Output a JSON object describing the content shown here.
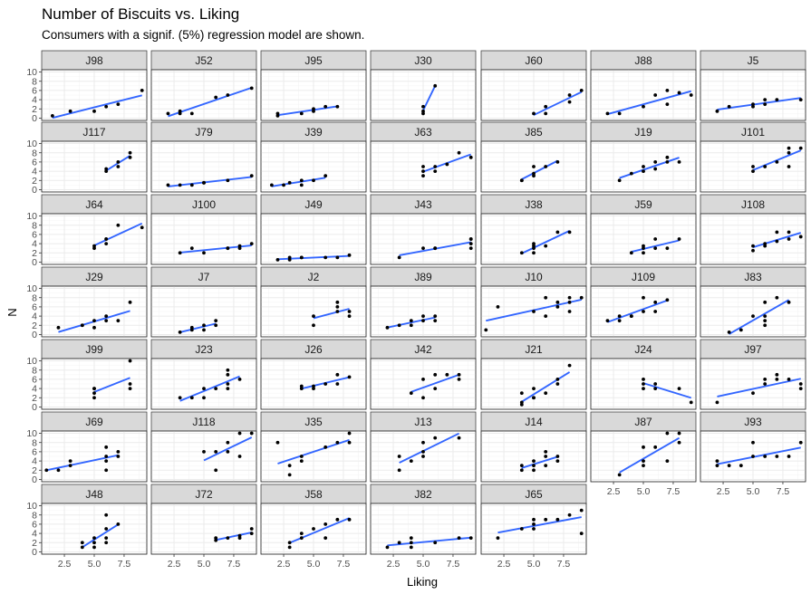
{
  "chart_data": {
    "type": "scatter",
    "title": "Number of Biscuits vs. Liking",
    "subtitle": "Consumers with a signif. (5%) regression model are shown.",
    "xlabel": "Liking",
    "ylabel": "N",
    "xlim": [
      0.6,
      9.4
    ],
    "ylim": [
      -0.5,
      10.5
    ],
    "xticks": [
      2.5,
      5.0,
      7.5
    ],
    "xtick_labels": [
      "2.5",
      "5.0",
      "7.5"
    ],
    "yticks": [
      0,
      2,
      4,
      6,
      8,
      10
    ],
    "ytick_labels": [
      "0",
      "2",
      "4",
      "6",
      "8",
      "10"
    ],
    "grid": true,
    "panels": [
      {
        "id": "J98",
        "x": [
          1.5,
          3,
          5,
          6,
          7,
          9
        ],
        "y": [
          0.5,
          1.5,
          1.5,
          2.5,
          3,
          6
        ]
      },
      {
        "id": "J52",
        "x": [
          2,
          3,
          3,
          4,
          6,
          7,
          9
        ],
        "y": [
          1,
          1,
          1.5,
          1,
          4.5,
          5,
          6.5
        ]
      },
      {
        "id": "J95",
        "x": [
          2,
          2,
          4,
          5,
          5,
          6,
          7
        ],
        "y": [
          0.5,
          1,
          1,
          1.5,
          2,
          2.5,
          2.5
        ]
      },
      {
        "id": "J30",
        "x": [
          5,
          5,
          5,
          6
        ],
        "y": [
          1,
          1.5,
          2.5,
          7
        ]
      },
      {
        "id": "J60",
        "x": [
          5,
          6,
          6,
          8,
          8,
          9
        ],
        "y": [
          1,
          1,
          2.5,
          3.5,
          5,
          6
        ]
      },
      {
        "id": "J88",
        "x": [
          2,
          3,
          5,
          6,
          7,
          7,
          8,
          9
        ],
        "y": [
          1,
          1,
          2.5,
          5,
          3,
          6,
          5.5,
          5
        ]
      },
      {
        "id": "J5",
        "x": [
          2,
          3,
          5,
          5,
          6,
          6,
          7,
          9
        ],
        "y": [
          1.5,
          2.5,
          2.5,
          3,
          3,
          4,
          4,
          4
        ]
      },
      {
        "id": "J117",
        "x": [
          6,
          6,
          7,
          7,
          8,
          8
        ],
        "y": [
          4,
          4.5,
          5,
          6,
          7,
          8
        ]
      },
      {
        "id": "J79",
        "x": [
          2,
          3,
          4,
          5,
          5,
          7,
          9
        ],
        "y": [
          1,
          1,
          1,
          1.5,
          1.5,
          2,
          3
        ]
      },
      {
        "id": "J39",
        "x": [
          1.5,
          2.5,
          3,
          4,
          4,
          5,
          6
        ],
        "y": [
          1,
          1,
          1.5,
          1,
          2,
          2,
          3
        ]
      },
      {
        "id": "J63",
        "x": [
          5,
          5,
          5,
          6,
          6,
          7,
          8,
          9
        ],
        "y": [
          3,
          4,
          5,
          4,
          5,
          5.5,
          8,
          7
        ]
      },
      {
        "id": "J85",
        "x": [
          4,
          4,
          5,
          5,
          5,
          6,
          7
        ],
        "y": [
          2,
          2,
          3,
          3.5,
          5,
          5,
          6
        ]
      },
      {
        "id": "J19",
        "x": [
          3,
          4,
          5,
          5,
          6,
          6,
          7,
          7,
          8
        ],
        "y": [
          2,
          3.5,
          4,
          5,
          4.5,
          6,
          6,
          7,
          6
        ]
      },
      {
        "id": "J101",
        "x": [
          5,
          5,
          6,
          7,
          8,
          8,
          8,
          9
        ],
        "y": [
          4,
          5,
          5,
          6,
          5,
          8,
          9,
          9
        ]
      },
      {
        "id": "J64",
        "x": [
          5,
          5,
          6,
          6,
          6,
          7,
          9
        ],
        "y": [
          3,
          3.5,
          4,
          5,
          5,
          8,
          7.5
        ]
      },
      {
        "id": "J100",
        "x": [
          3,
          4,
          5,
          7,
          7,
          8,
          8,
          9
        ],
        "y": [
          2,
          3,
          2,
          3,
          3,
          3,
          3.5,
          4
        ]
      },
      {
        "id": "J49",
        "x": [
          2,
          3,
          3,
          4,
          4,
          6,
          7,
          8
        ],
        "y": [
          0.5,
          0.5,
          1,
          1,
          1,
          1,
          1,
          1.5
        ]
      },
      {
        "id": "J43",
        "x": [
          3,
          5,
          6,
          6,
          9,
          9,
          9,
          9
        ],
        "y": [
          1,
          3,
          3,
          3,
          3,
          4,
          5,
          5
        ]
      },
      {
        "id": "J38",
        "x": [
          4,
          5,
          5,
          5,
          5,
          6,
          7,
          8
        ],
        "y": [
          2,
          2,
          3,
          3.5,
          4,
          3.5,
          6.5,
          6.5
        ]
      },
      {
        "id": "J59",
        "x": [
          4,
          5,
          5,
          5,
          6,
          6,
          7,
          8
        ],
        "y": [
          2,
          2,
          3,
          3.5,
          3,
          5,
          3,
          5
        ]
      },
      {
        "id": "J108",
        "x": [
          5,
          5,
          6,
          6,
          7,
          7,
          8,
          8,
          9
        ],
        "y": [
          2.5,
          3.5,
          3.5,
          4,
          4.5,
          6.5,
          6.5,
          5,
          5.5
        ]
      },
      {
        "id": "J29",
        "x": [
          2,
          4,
          4,
          5,
          5,
          6,
          6,
          7,
          8
        ],
        "y": [
          1.5,
          2,
          2,
          3,
          1.5,
          4,
          3,
          3,
          7
        ]
      },
      {
        "id": "J7",
        "x": [
          3,
          4,
          4,
          5,
          5,
          6,
          6
        ],
        "y": [
          0.5,
          1,
          1.5,
          1,
          2,
          2,
          3
        ]
      },
      {
        "id": "J2",
        "x": [
          5,
          5,
          7,
          7,
          7,
          8,
          8
        ],
        "y": [
          2,
          4,
          5,
          6,
          7,
          4,
          5
        ]
      },
      {
        "id": "J89",
        "x": [
          2,
          3,
          4,
          4,
          5,
          5,
          6,
          6
        ],
        "y": [
          1.5,
          2,
          2,
          3,
          4,
          3,
          4,
          3
        ]
      },
      {
        "id": "J10",
        "x": [
          1,
          2,
          5,
          6,
          6,
          7,
          7,
          8,
          8,
          8,
          9
        ],
        "y": [
          1,
          6,
          5,
          4,
          8,
          6,
          7,
          8,
          7,
          5,
          8
        ]
      },
      {
        "id": "J109",
        "x": [
          2,
          3,
          3,
          4,
          4,
          5,
          5,
          6,
          6,
          7
        ],
        "y": [
          3,
          3,
          4,
          4,
          4,
          5,
          8,
          5,
          7,
          7.5
        ]
      },
      {
        "id": "J83",
        "x": [
          3,
          4,
          5,
          6,
          6,
          6,
          6,
          7,
          8
        ],
        "y": [
          0.5,
          1,
          4,
          2,
          3,
          4,
          7,
          8,
          7
        ]
      },
      {
        "id": "J99",
        "x": [
          5,
          5,
          5,
          5,
          8,
          8,
          8
        ],
        "y": [
          2,
          3,
          4,
          4,
          4,
          5,
          10
        ]
      },
      {
        "id": "J23",
        "x": [
          3,
          4,
          5,
          5,
          6,
          7,
          7,
          7,
          7,
          8
        ],
        "y": [
          2,
          2,
          2,
          4,
          4,
          4,
          5,
          7,
          8,
          6
        ]
      },
      {
        "id": "J26",
        "x": [
          4,
          4,
          5,
          5,
          6,
          7,
          7,
          8
        ],
        "y": [
          4,
          4.5,
          4,
          4.5,
          5,
          5,
          7,
          6.5
        ]
      },
      {
        "id": "J42",
        "x": [
          4,
          5,
          5,
          6,
          6,
          7,
          8,
          8
        ],
        "y": [
          3,
          2,
          6,
          4,
          7,
          7,
          7,
          6
        ]
      },
      {
        "id": "J21",
        "x": [
          4,
          4,
          4,
          5,
          5,
          5,
          6,
          7,
          7,
          8
        ],
        "y": [
          0.5,
          1,
          3,
          2,
          2,
          4,
          3,
          5,
          6,
          9
        ]
      },
      {
        "id": "J24",
        "x": [
          5,
          5,
          5,
          6,
          6,
          8,
          9
        ],
        "y": [
          4,
          5,
          6,
          4,
          5,
          4,
          1
        ]
      },
      {
        "id": "J97",
        "x": [
          2,
          5,
          6,
          6,
          7,
          7,
          8,
          9,
          9
        ],
        "y": [
          1,
          3,
          6,
          5,
          7,
          6,
          6,
          4,
          5
        ]
      },
      {
        "id": "J69",
        "x": [
          1,
          2,
          3,
          3,
          6,
          6,
          6,
          6,
          7,
          7
        ],
        "y": [
          2,
          2,
          3,
          4,
          2,
          4,
          5,
          7,
          5,
          6
        ]
      },
      {
        "id": "J118",
        "x": [
          5,
          6,
          6,
          7,
          7,
          8,
          8,
          9
        ],
        "y": [
          6,
          2,
          6,
          6,
          8,
          5,
          10,
          10
        ]
      },
      {
        "id": "J35",
        "x": [
          2,
          3,
          3,
          4,
          4,
          6,
          7,
          8,
          8
        ],
        "y": [
          8,
          1,
          3,
          4,
          5,
          7,
          8,
          8,
          10
        ]
      },
      {
        "id": "J13",
        "x": [
          3,
          3,
          4,
          5,
          5,
          5,
          6,
          8
        ],
        "y": [
          2,
          5,
          4,
          5,
          6,
          8,
          9,
          9
        ]
      },
      {
        "id": "J14",
        "x": [
          4,
          4,
          5,
          5,
          5,
          6,
          6,
          6,
          7,
          7
        ],
        "y": [
          2,
          3,
          2,
          3,
          4,
          5,
          3,
          6,
          5,
          4
        ]
      },
      {
        "id": "J87",
        "x": [
          3,
          5,
          5,
          5,
          6,
          7,
          7,
          8,
          8
        ],
        "y": [
          1,
          3,
          4,
          7,
          7,
          4,
          10,
          8,
          10
        ]
      },
      {
        "id": "J93",
        "x": [
          2,
          2,
          3,
          4,
          5,
          5,
          6,
          7,
          8,
          9
        ],
        "y": [
          3,
          4,
          3,
          3,
          5,
          8,
          5,
          5,
          5,
          8
        ]
      },
      {
        "id": "J48",
        "x": [
          4,
          4,
          5,
          5,
          5,
          6,
          6,
          6,
          6,
          7
        ],
        "y": [
          1,
          2,
          1,
          2,
          3,
          2,
          3,
          5,
          8,
          6
        ]
      },
      {
        "id": "J72",
        "x": [
          6,
          6,
          7,
          8,
          8,
          9,
          9
        ],
        "y": [
          3,
          2.5,
          3,
          3.5,
          3,
          4,
          5
        ]
      },
      {
        "id": "J58",
        "x": [
          3,
          3,
          4,
          4,
          5,
          6,
          6,
          7,
          8
        ],
        "y": [
          1,
          2,
          3,
          4,
          5,
          3,
          6,
          7,
          7
        ]
      },
      {
        "id": "J82",
        "x": [
          2,
          3,
          4,
          4,
          4,
          6,
          8,
          9
        ],
        "y": [
          1,
          2,
          2,
          3,
          1,
          2,
          3,
          3
        ]
      },
      {
        "id": "J65",
        "x": [
          2,
          4,
          5,
          5,
          5,
          6,
          7,
          8,
          9,
          9
        ],
        "y": [
          3,
          5,
          5,
          6,
          7,
          7,
          7,
          8,
          9,
          4
        ]
      }
    ]
  }
}
